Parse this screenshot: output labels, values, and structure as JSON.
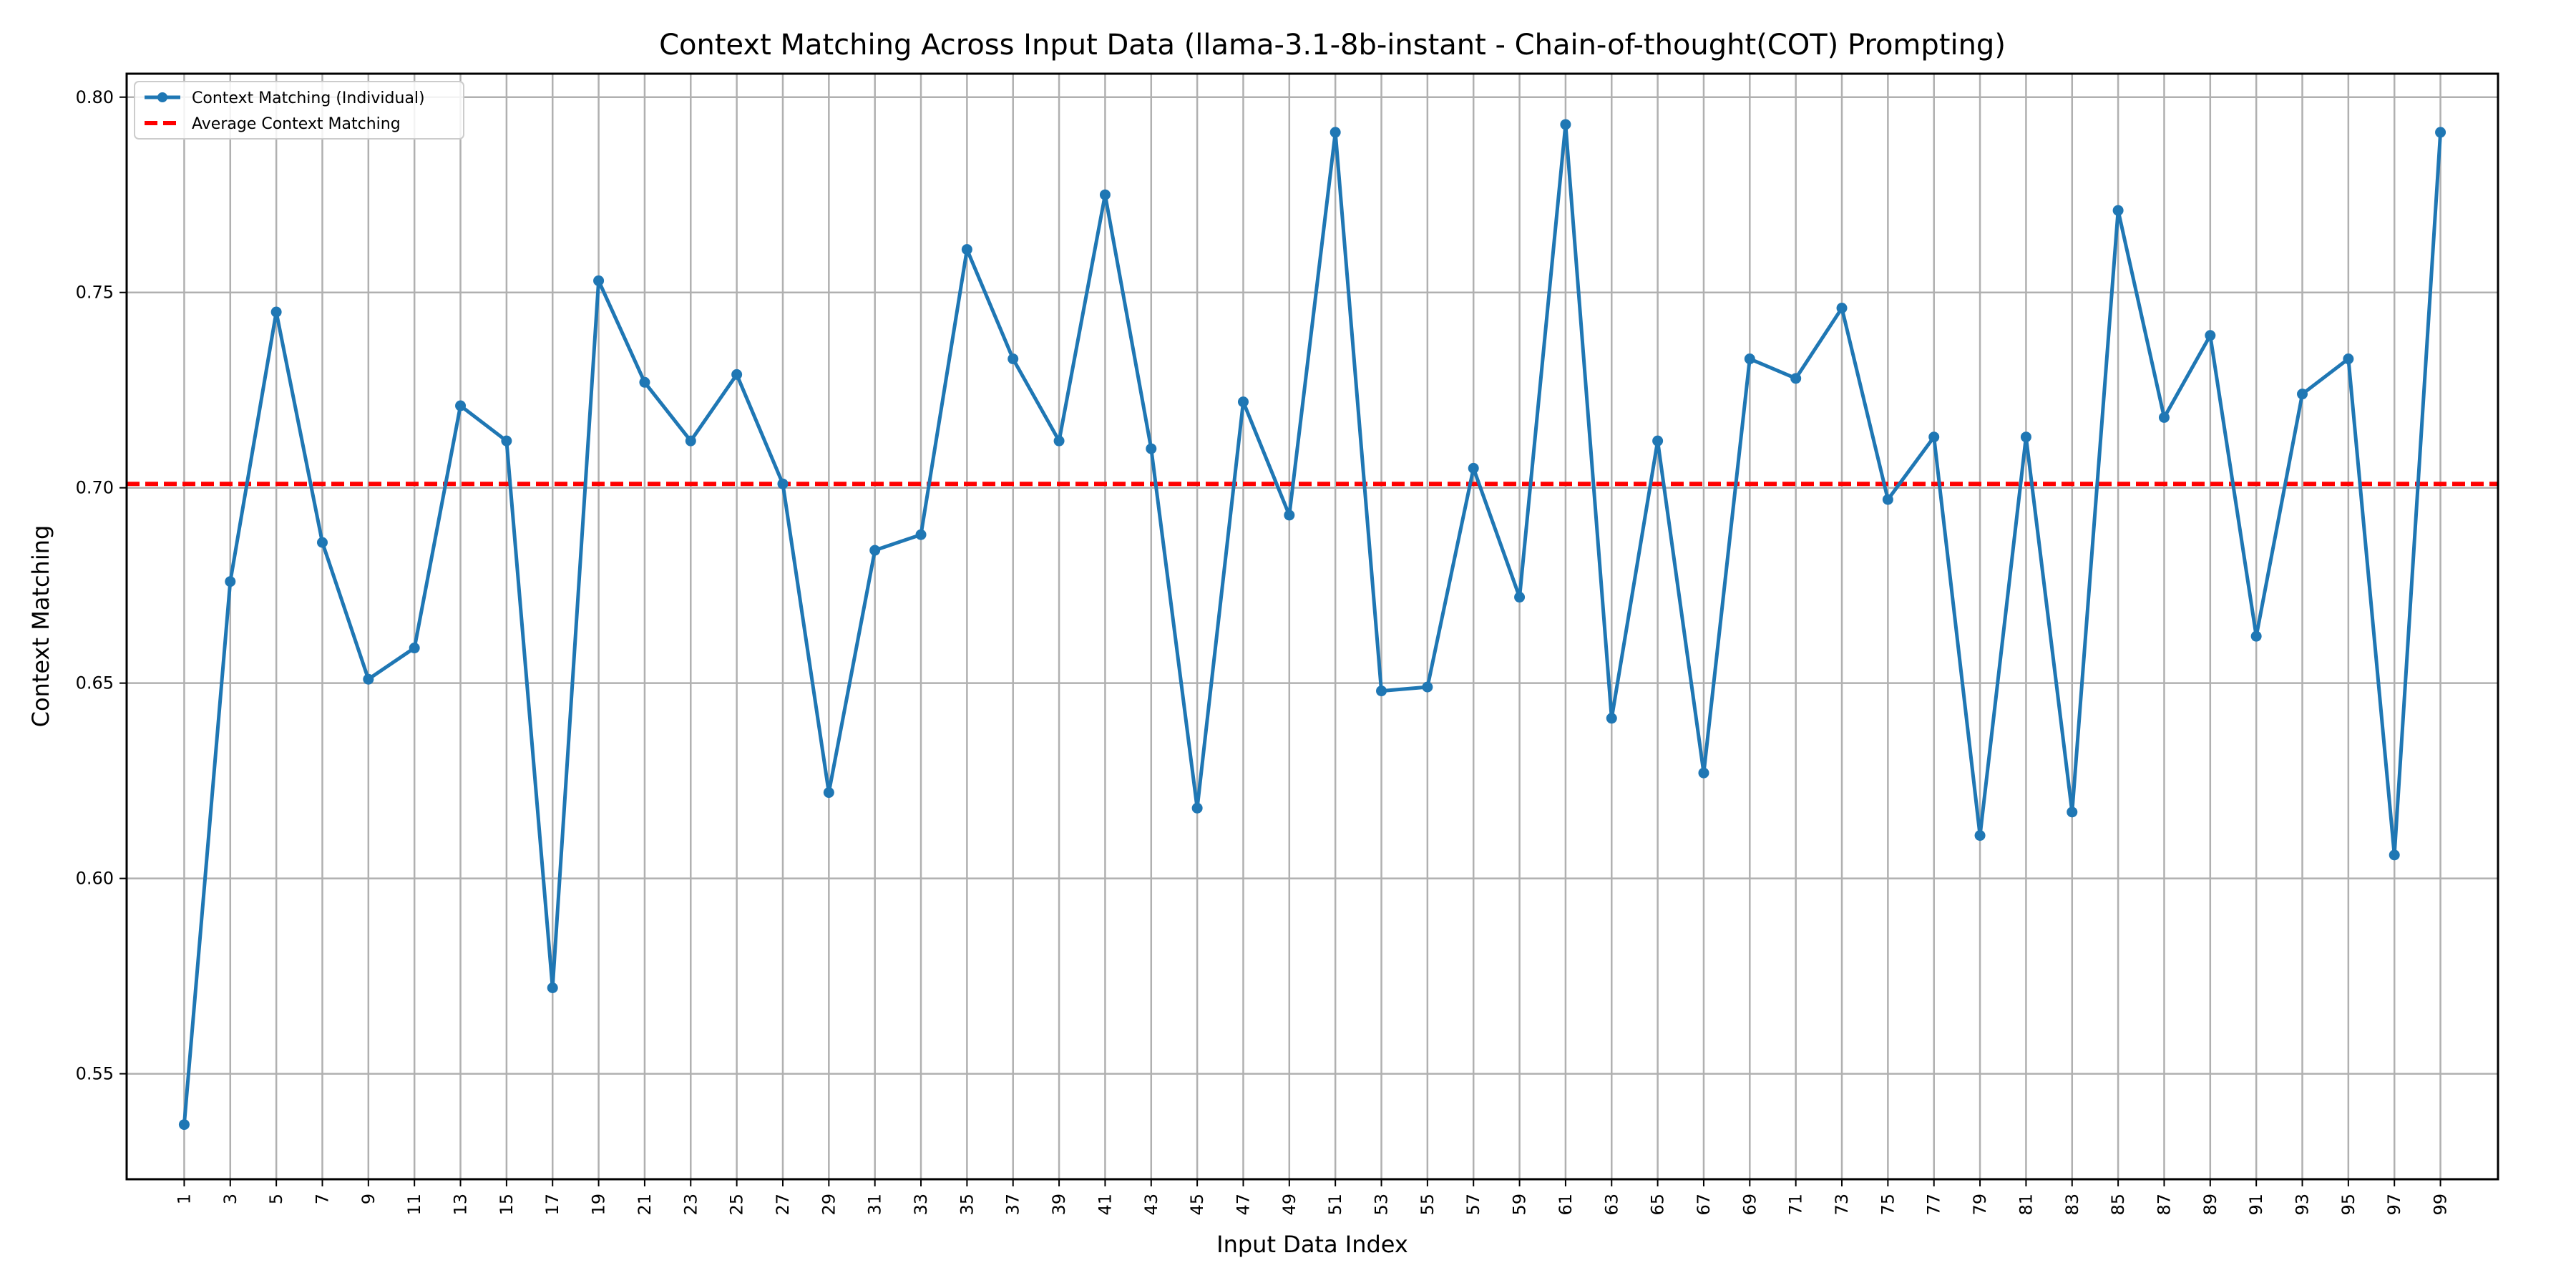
{
  "chart_data": {
    "type": "line",
    "title": "Context Matching Across Input Data (llama-3.1-8b-instant - Chain-of-thought(COT) Prompting)",
    "xlabel": "Input Data Index",
    "ylabel": "Context Matching",
    "ylim": [
      0.523,
      0.806
    ],
    "xlim": [
      -1.5,
      101.5
    ],
    "yticks": [
      "0.55",
      "0.60",
      "0.65",
      "0.70",
      "0.75",
      "0.80"
    ],
    "xticks": [
      "1",
      "3",
      "5",
      "7",
      "9",
      "11",
      "13",
      "15",
      "17",
      "19",
      "21",
      "23",
      "25",
      "27",
      "29",
      "31",
      "33",
      "35",
      "37",
      "39",
      "41",
      "43",
      "45",
      "47",
      "49",
      "51",
      "53",
      "55",
      "57",
      "59",
      "61",
      "63",
      "65",
      "67",
      "69",
      "71",
      "73",
      "75",
      "77",
      "79",
      "81",
      "83",
      "85",
      "87",
      "89",
      "91",
      "93",
      "95",
      "97",
      "99"
    ],
    "grid": true,
    "legend_position": "top-left",
    "legend": [
      {
        "label": "Context Matching (Individual)",
        "color": "#1f77b4",
        "style": "solid-with-markers"
      },
      {
        "label": "Average Context Matching",
        "color": "#ff0000",
        "style": "dashed"
      }
    ],
    "series": [
      {
        "name": "Context Matching (Individual)",
        "color": "#1f77b4",
        "x": [
          1,
          3,
          5,
          7,
          9,
          11,
          13,
          15,
          17,
          19,
          21,
          23,
          25,
          27,
          29,
          31,
          33,
          35,
          37,
          39,
          41,
          43,
          45,
          47,
          49,
          51,
          53,
          55,
          57,
          59,
          61,
          63,
          65,
          67,
          69,
          71,
          73,
          75,
          77,
          79,
          81,
          83,
          85,
          87,
          89,
          91,
          93,
          95,
          97,
          99
        ],
        "values": [
          0.537,
          0.676,
          0.745,
          0.686,
          0.651,
          0.659,
          0.721,
          0.712,
          0.572,
          0.753,
          0.727,
          0.712,
          0.729,
          0.701,
          0.622,
          0.684,
          0.688,
          0.761,
          0.733,
          0.712,
          0.775,
          0.71,
          0.618,
          0.722,
          0.693,
          0.791,
          0.648,
          0.649,
          0.705,
          0.672,
          0.793,
          0.641,
          0.712,
          0.627,
          0.733,
          0.728,
          0.746,
          0.697,
          0.713,
          0.611,
          0.713,
          0.617,
          0.771,
          0.718,
          0.739,
          0.662,
          0.724,
          0.733,
          0.606,
          0.791
        ]
      },
      {
        "name": "Average Context Matching",
        "color": "#ff0000",
        "value": 0.701
      }
    ]
  }
}
